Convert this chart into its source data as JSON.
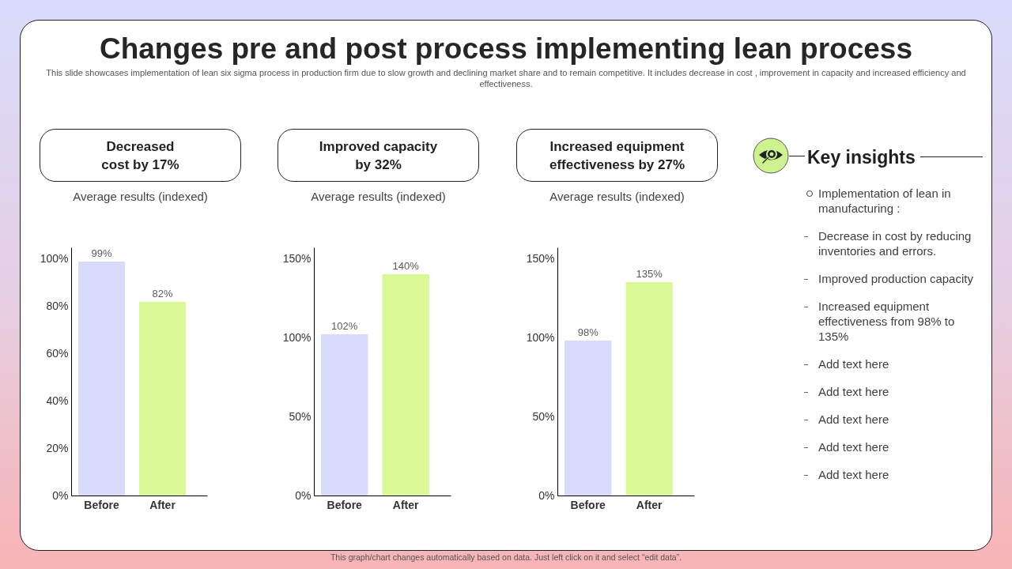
{
  "chart_data": [
    {
      "type": "other",
      "title": "Changes pre and post process implementing lean process",
      "subtitle": "This slide showcases implementation of lean six sigma process in production firm due to slow growth and declining market share and to remain competitive. It includes decrease in cost , improvement in capacity and increased efficiency and effectiveness."
    },
    {
      "type": "bar",
      "title": "Decreased cost by 17%",
      "subtitle": "Average results (indexed)",
      "categories": [
        "Before",
        "After"
      ],
      "values": [
        99,
        82
      ],
      "colors": [
        "#d8dbf9",
        "#daf996"
      ],
      "value_labels": [
        "99%",
        "82%"
      ],
      "ylim": [
        0,
        105
      ],
      "yticks": [
        {
          "value": 0,
          "label": "0%"
        },
        {
          "value": 20,
          "label": "20%"
        },
        {
          "value": 40,
          "label": "40%"
        },
        {
          "value": 60,
          "label": "60%"
        },
        {
          "value": 80,
          "label": "80%"
        },
        {
          "value": 100,
          "label": "100%"
        }
      ]
    },
    {
      "type": "bar",
      "title": "Improved capacity by 32%",
      "subtitle": "Average results (indexed)",
      "categories": [
        "Before",
        "After"
      ],
      "values": [
        102,
        140
      ],
      "colors": [
        "#d8dbf9",
        "#daf996"
      ],
      "value_labels": [
        "102%",
        "140%"
      ],
      "ylim": [
        0,
        157
      ],
      "yticks": [
        {
          "value": 0,
          "label": "0%"
        },
        {
          "value": 50,
          "label": "50%"
        },
        {
          "value": 100,
          "label": "100%"
        },
        {
          "value": 150,
          "label": "150%"
        }
      ]
    },
    {
      "type": "bar",
      "title": "Increased equipment effectiveness by 27%",
      "subtitle": "Average results (indexed)",
      "categories": [
        "Before",
        "After"
      ],
      "values": [
        98,
        135
      ],
      "colors": [
        "#d8dbf9",
        "#daf996"
      ],
      "value_labels": [
        "98%",
        "135%"
      ],
      "ylim": [
        0,
        157
      ],
      "yticks": [
        {
          "value": 0,
          "label": "0%"
        },
        {
          "value": 50,
          "label": "50%"
        },
        {
          "value": 100,
          "label": "100%"
        },
        {
          "value": 150,
          "label": "150%"
        }
      ]
    },
    {
      "type": "other",
      "title": "Key insights",
      "annotations": [
        "Implementation of lean in manufacturing :",
        "Decrease in cost by reducing inventories and errors.",
        "Improved production capacity",
        "Increased equipment effectiveness from 98% to 135%",
        "Add text here",
        "Add text here",
        "Add text here",
        "Add text here",
        "Add text here"
      ]
    },
    {
      "type": "other",
      "annotations": [
        "This graph/chart changes automatically based on data. Just left click on it and select “edit data”."
      ]
    }
  ]
}
